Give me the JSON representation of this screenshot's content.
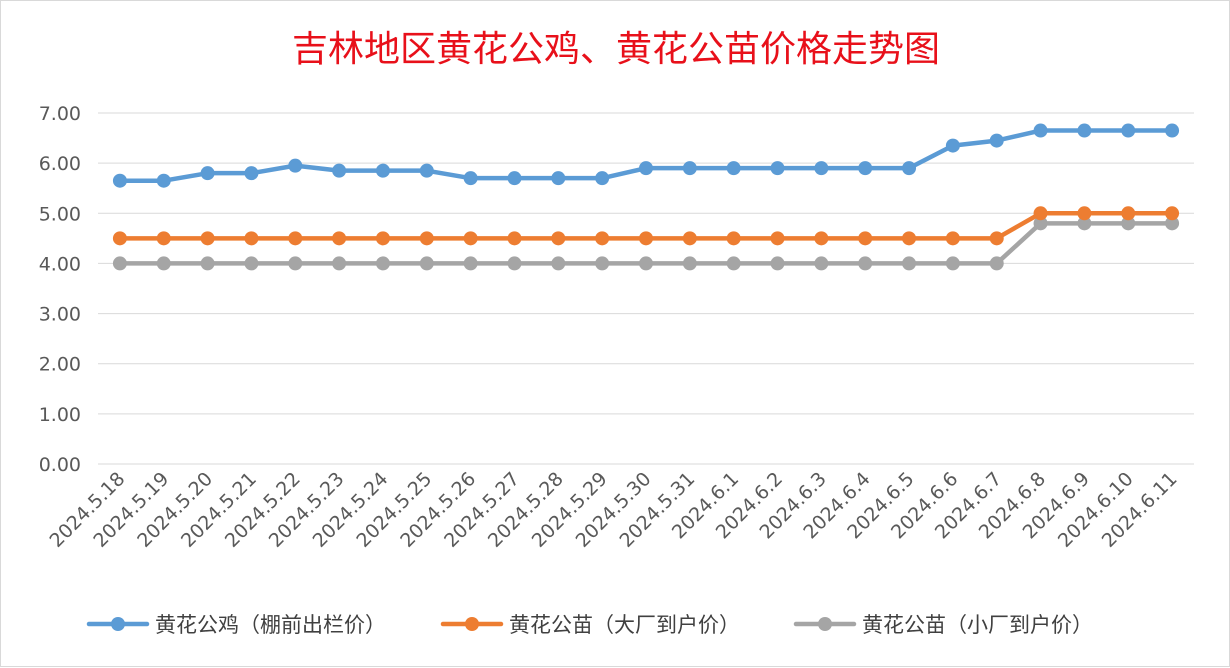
{
  "chart_data": {
    "type": "line",
    "title": "吉林地区黄花公鸡、黄花公苗价格走势图",
    "xlabel": "",
    "ylabel": "",
    "ylim": [
      0,
      7
    ],
    "yticks": [
      "0.00",
      "1.00",
      "2.00",
      "3.00",
      "4.00",
      "5.00",
      "6.00",
      "7.00"
    ],
    "grid": true,
    "legend_position": "bottom",
    "categories": [
      "2024.5.18",
      "2024.5.19",
      "2024.5.20",
      "2024.5.21",
      "2024.5.22",
      "2024.5.23",
      "2024.5.24",
      "2024.5.25",
      "2024.5.26",
      "2024.5.27",
      "2024.5.28",
      "2024.5.29",
      "2024.5.30",
      "2024.5.31",
      "2024.6.1",
      "2024.6.2",
      "2024.6.3",
      "2024.6.4",
      "2024.6.5",
      "2024.6.6",
      "2024.6.7",
      "2024.6.8",
      "2024.6.9",
      "2024.6.10",
      "2024.6.11"
    ],
    "series": [
      {
        "name": "黄花公鸡（棚前出栏价）",
        "color": "#5b9bd5",
        "values": [
          5.65,
          5.65,
          5.8,
          5.8,
          5.95,
          5.85,
          5.85,
          5.85,
          5.7,
          5.7,
          5.7,
          5.7,
          5.9,
          5.9,
          5.9,
          5.9,
          5.9,
          5.9,
          5.9,
          6.35,
          6.45,
          6.65,
          6.65,
          6.65,
          6.65
        ]
      },
      {
        "name": "黄花公苗（大厂到户价）",
        "color": "#ed7d31",
        "values": [
          4.5,
          4.5,
          4.5,
          4.5,
          4.5,
          4.5,
          4.5,
          4.5,
          4.5,
          4.5,
          4.5,
          4.5,
          4.5,
          4.5,
          4.5,
          4.5,
          4.5,
          4.5,
          4.5,
          4.5,
          4.5,
          5.0,
          5.0,
          5.0,
          5.0
        ]
      },
      {
        "name": "黄花公苗（小厂到户价）",
        "color": "#a5a5a5",
        "values": [
          4.0,
          4.0,
          4.0,
          4.0,
          4.0,
          4.0,
          4.0,
          4.0,
          4.0,
          4.0,
          4.0,
          4.0,
          4.0,
          4.0,
          4.0,
          4.0,
          4.0,
          4.0,
          4.0,
          4.0,
          4.0,
          4.8,
          4.8,
          4.8,
          4.8
        ]
      }
    ]
  }
}
